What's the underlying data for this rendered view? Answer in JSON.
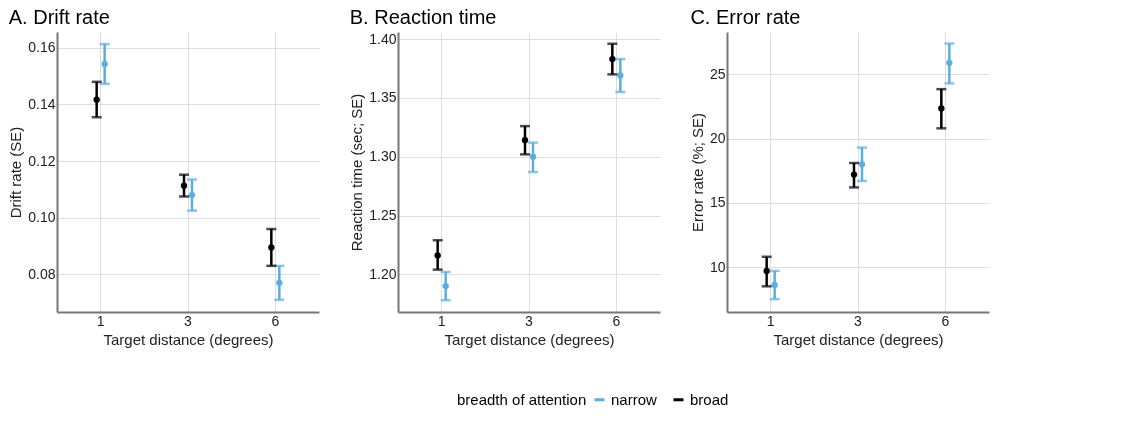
{
  "chart_data": [
    {
      "type": "scatter",
      "title": "A. Drift rate",
      "xlabel": "Target distance (degrees)",
      "ylabel": "Drift rate (SE)",
      "categories": [
        "1",
        "3",
        "6"
      ],
      "series": [
        {
          "name": "narrow",
          "color": "#5aaee0",
          "values": [
            0.1543,
            0.108,
            0.077
          ],
          "errors": [
            [
              0.1473,
              0.1613
            ],
            [
              0.1025,
              0.1135
            ],
            [
              0.071,
              0.083
            ]
          ]
        },
        {
          "name": "broad",
          "color": "#000000",
          "values": [
            0.1417,
            0.1113,
            0.0895
          ],
          "errors": [
            [
              0.1355,
              0.148
            ],
            [
              0.1075,
              0.1152
            ],
            [
              0.083,
              0.096
            ]
          ]
        }
      ],
      "ylim": [
        0.0667,
        0.1656
      ],
      "yticks": [
        0.08,
        {
          "value": 0.1,
          "label": "0.10"
        },
        0.12,
        0.14,
        0.16
      ],
      "grid": true,
      "marker": "circle",
      "legend": "bottom",
      "legend_title": "breadth of attention"
    },
    {
      "type": "scatter",
      "title": "B. Reaction time",
      "xlabel": "Target distance (degrees)",
      "ylabel": "Reaction time (sec; SE)",
      "categories": [
        "1",
        "3",
        "6"
      ],
      "series": [
        {
          "name": "narrow",
          "color": "#5aaee0",
          "values": [
            1.19,
            1.3,
            1.369
          ],
          "errors": [
            [
              1.178,
              1.202
            ],
            [
              1.287,
              1.312
            ],
            [
              1.355,
              1.383
            ]
          ]
        },
        {
          "name": "broad",
          "color": "#000000",
          "values": [
            1.216,
            1.314,
            1.383
          ],
          "errors": [
            [
              1.204,
              1.229
            ],
            [
              1.302,
              1.326
            ],
            [
              1.37,
              1.396
            ]
          ]
        }
      ],
      "ylim": [
        1.168,
        1.406
      ],
      "yticks": [
        {
          "value": 1.2,
          "label": "1.20"
        },
        1.25,
        {
          "value": 1.3,
          "label": "1.30"
        },
        1.35,
        {
          "value": 1.4,
          "label": "1.40"
        }
      ],
      "grid": true,
      "marker": "circle",
      "legend": "bottom"
    },
    {
      "type": "scatter",
      "title": "C. Error rate",
      "xlabel": "Target distance (degrees)",
      "ylabel": "Error rate (%; SE)",
      "categories": [
        "1",
        "3",
        "6"
      ],
      "series": [
        {
          "name": "narrow",
          "color": "#5aaee0",
          "values": [
            8.6,
            18.0,
            25.9
          ],
          "errors": [
            [
              7.5,
              9.7
            ],
            [
              16.7,
              19.3
            ],
            [
              24.3,
              27.4
            ]
          ]
        },
        {
          "name": "broad",
          "color": "#000000",
          "values": [
            9.7,
            17.2,
            22.35
          ],
          "errors": [
            [
              8.5,
              10.8
            ],
            [
              16.2,
              18.1
            ],
            [
              20.8,
              23.85
            ]
          ]
        }
      ],
      "ylim": [
        6.5,
        28.3
      ],
      "yticks": [
        10,
        15,
        20,
        25
      ],
      "grid": true,
      "marker": "circle",
      "legend": "bottom"
    }
  ]
}
